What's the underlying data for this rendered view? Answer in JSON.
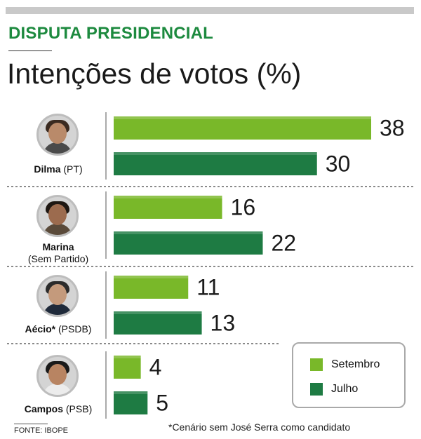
{
  "kicker": "DISPUTA PRESIDENCIAL",
  "title": "Intenções de votos (%)",
  "chart_data": {
    "type": "bar",
    "orientation": "horizontal",
    "categories": [
      "Dilma",
      "Marina",
      "Aécio*",
      "Campos"
    ],
    "series": [
      {
        "name": "Setembro",
        "color": "#79b829",
        "values": [
          38,
          16,
          11,
          4
        ]
      },
      {
        "name": "Julho",
        "color": "#1e7b43",
        "values": [
          30,
          22,
          13,
          5
        ]
      }
    ],
    "xlim": [
      0,
      38
    ],
    "title": "Intenções de votos (%)",
    "legend_position": "bottom-right"
  },
  "candidates": [
    {
      "name": "Dilma",
      "party": "(PT)"
    },
    {
      "name": "Marina",
      "party": "(Sem Partido)"
    },
    {
      "name": "Aécio*",
      "party": "(PSDB)"
    },
    {
      "name": "Campos",
      "party": "(PSB)"
    }
  ],
  "legend": {
    "items": [
      "Setembro",
      "Julho"
    ]
  },
  "source": "FONTE: IBOPE",
  "note": "*Cenário sem José Serra como candidato"
}
